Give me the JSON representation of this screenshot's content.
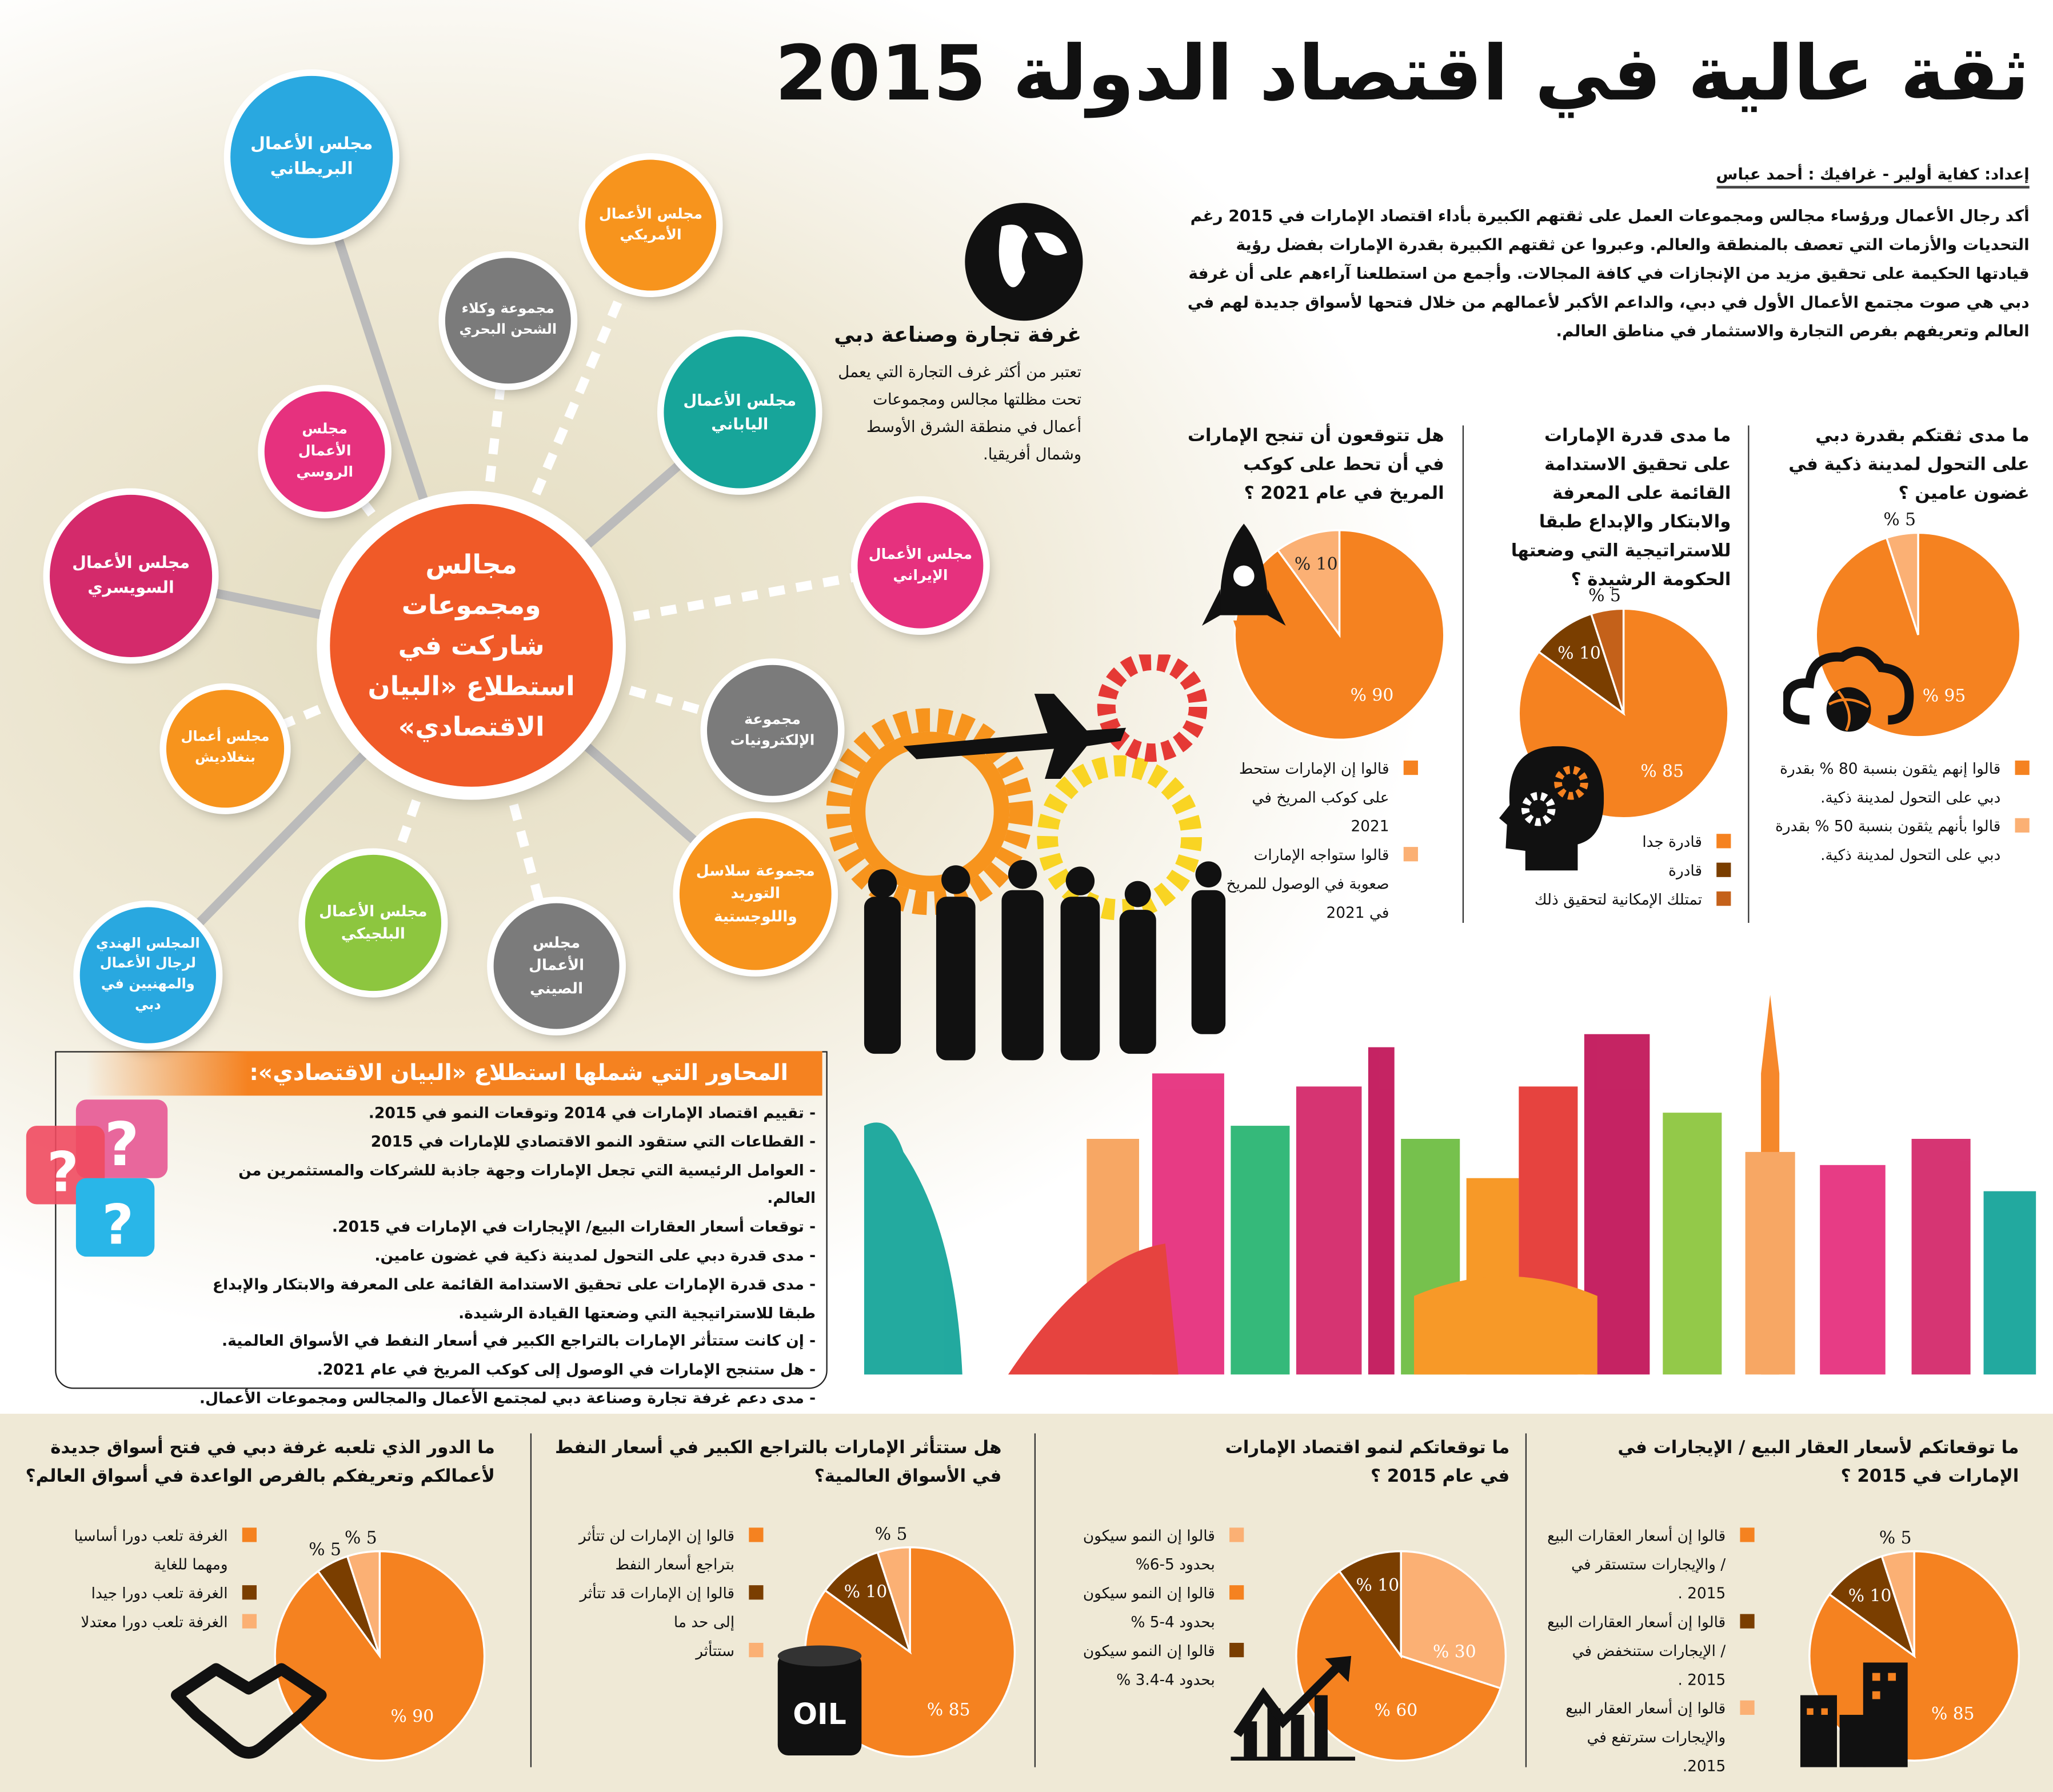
{
  "header": {
    "title": "ثقة عالية في اقتصاد الدولة 2015",
    "credits": "إعداد: كفاية أولير  - غرافيك : أحمد عباس",
    "intro": "أكد رجال الأعمال ورؤساء مجالس ومجموعات العمل على ثقتهم الكبيرة بأداء اقتصاد الإمارات في 2015 رغم التحديات والأزمات التي تعصف بالمنطقة والعالم. وعبروا عن ثقتهم الكبيرة بقدرة الإمارات بفضل رؤية قيادتها الحكيمة على تحقيق مزيد من الإنجازات في كافة المجالات. وأجمع من استطلعنا آراءهم على أن غرفة دبي هي صوت مجتمع الأعمال الأول في دبي، والداعم الأكبر لأعمالهم من خلال فتحها لأسواق جديدة لهم في العالم وتعريفهم بفرص التجارة والاستثمار في مناطق العالم."
  },
  "chamber": {
    "title": "غرفة تجارة وصناعة دبي",
    "text": "تعتبر من أكثر غرف التجارة التي يعمل تحت مظلتها مجالس ومجموعات أعمال في منطقة الشرق الأوسط وشمال أفريقيا."
  },
  "hub": {
    "center": "مجالس ومجموعات شاركت في استطلاع «البيان الاقتصادي»",
    "center_color": "#F05A28",
    "nodes": [
      {
        "label": "مجلس الأعمال البريطاني",
        "color": "#29A8E0"
      },
      {
        "label": "مجلس الأعمال الأمريكي",
        "color": "#F7941D"
      },
      {
        "label": "مجموعة وكلاء الشحن البحري",
        "color": "#7B7B7B"
      },
      {
        "label": "مجلس الأعمال الياباني",
        "color": "#17A59A"
      },
      {
        "label": "مجلس الأعمال الروسي",
        "color": "#E6317E"
      },
      {
        "label": "مجلس الأعمال الإيراني",
        "color": "#E6317E"
      },
      {
        "label": "مجلس الأعمال السويسري",
        "color": "#D42A6B"
      },
      {
        "label": "مجموعة الإلكترونيات",
        "color": "#7B7B7B"
      },
      {
        "label": "مجلس أعمال بنغلاديش",
        "color": "#F7941D"
      },
      {
        "label": "مجموعة سلاسل التوريد واللوجستية",
        "color": "#F7941D"
      },
      {
        "label": "مجلس الأعمال البلجيكي",
        "color": "#8DC63F"
      },
      {
        "label": "مجلس الأعمال الصيني",
        "color": "#7B7B7B"
      },
      {
        "label": "المجلس الهندي لرجال الأعمال والمهنيين في دبي",
        "color": "#29A8E0"
      }
    ]
  },
  "topics": {
    "heading": "المحاور التي شملها استطلاع «البيان الاقتصادي»:",
    "items": [
      "- تقييم اقتصاد الإمارات في 2014 وتوقعات النمو في 2015.",
      "- القطاعات التي ستقود النمو الاقتصادي للإمارات في 2015",
      "- العوامل الرئيسية التي تجعل الإمارات وجهة جاذبة للشركات والمستثمرين من العالم.",
      "- توقعات أسعار العقارات البيع/ الإيجارات في الإمارات في 2015.",
      "- مدى قدرة دبي على التحول لمدينة ذكية في غضون عامين.",
      "- مدى قدرة الإمارات على تحقيق الاستدامة القائمة على المعرفة والابتكار والإبداع طبقا للاستراتيجية التي وضعتها القيادة الرشيدة.",
      "- إن كانت ستتأثر الإمارات بالتراجع الكبير في أسعار النفط في الأسواق العالمية.",
      "- هل ستنجح الإمارات في الوصول إلى كوكب المريخ في عام 2021.",
      "- مدى دعم غرفة تجارة وصناعة دبي لمجتمع الأعمال والمجالس ومجموعات الأعمال."
    ]
  },
  "colors": {
    "orange": "#F58220",
    "light": "#FBB074",
    "dark": "#7A3E00",
    "medium": "#C4611A"
  },
  "chart_data": [
    {
      "type": "pie",
      "id": "smart",
      "title": "ما مدى ثقتكم بقدرة دبي على التحول لمدينة ذكية في غضون عامين ؟",
      "values": [
        95,
        5
      ],
      "labels": [
        "% 95",
        "% 5"
      ],
      "colors": [
        "#F58220",
        "#FBB074"
      ],
      "legend": [
        "قالوا إنهم يثقون بنسبة 80 % بقدرة دبي على التحول لمدينة ذكية.",
        "قالوا بأنهم يثقون بنسبة 50 % بقدرة دبي على التحول لمدينة ذكية."
      ]
    },
    {
      "type": "pie",
      "id": "sustain",
      "title": "ما مدى قدرة الإمارات على تحقيق الاستدامة القائمة على المعرفة والابتكار والإبداع طبقا للاستراتيجية التي وضعتها الحكومة الرشيدة ؟",
      "values": [
        85,
        10,
        5
      ],
      "labels": [
        "% 85",
        "% 10",
        "% 5"
      ],
      "colors": [
        "#F58220",
        "#7A3E00",
        "#C4611A"
      ],
      "legend": [
        "قادرة جدا",
        "قادرة",
        "تمتلك الإمكانية لتحقيق ذلك"
      ]
    },
    {
      "type": "pie",
      "id": "mars",
      "title": "هل تتوقعون أن تنجح الإمارات في أن تحط على كوكب المريخ في عام 2021 ؟",
      "values": [
        90,
        10
      ],
      "labels": [
        "% 90",
        "% 10"
      ],
      "colors": [
        "#F58220",
        "#FBB074"
      ],
      "legend": [
        "قالوا إن الإمارات ستحط على كوكب المريخ في 2021",
        "قالوا ستواجه الإمارات صعوبة في الوصول للمريخ في 2021"
      ]
    },
    {
      "type": "pie",
      "id": "realestate",
      "title": "ما توقعاتكم لأسعار العقار البيع / الإيجارات في الإمارات في 2015 ؟",
      "values": [
        85,
        10,
        5
      ],
      "labels": [
        "% 85",
        "% 10",
        "% 5"
      ],
      "colors": [
        "#F58220",
        "#7A3E00",
        "#FBB074"
      ],
      "legend": [
        "قالوا إن أسعار العقارات البيع / والإيجارات ستستقر في 2015 .",
        "قالوا إن أسعار العقارات البيع / الإيجارات ستنخفض في 2015 .",
        "قالوا إن أسعار العقار البيع والإيجارات سترتفع في 2015."
      ]
    },
    {
      "type": "pie",
      "id": "growth",
      "title": "ما توقعاتكم لنمو اقتصاد الإمارات في عام 2015 ؟",
      "values": [
        30,
        60,
        10
      ],
      "labels": [
        "% 30",
        "% 60",
        "% 10"
      ],
      "colors": [
        "#FBB074",
        "#F58220",
        "#7A3E00"
      ],
      "legend": [
        "قالوا إن النمو سيكون بحدود 5-6%",
        "قالوا إن النمو سيكون بحدود 4-5 %",
        "قالوا إن النمو سيكون بحدود 4-3.4 %"
      ]
    },
    {
      "type": "pie",
      "id": "oil",
      "title": "هل ستتأثر الإمارات بالتراجع الكبير في أسعار النفط في الأسواق العالمية؟",
      "values": [
        85,
        10,
        5
      ],
      "labels": [
        "% 85",
        "% 10",
        "% 5"
      ],
      "colors": [
        "#F58220",
        "#7A3E00",
        "#FBB074"
      ],
      "legend": [
        "قالوا إن الإمارات لن تتأثر بتراجع أسعار النفط",
        "قالوا إن الإمارات قد تتأثر إلى حد ما",
        "ستتأثر"
      ],
      "icon_text": "OIL"
    },
    {
      "type": "pie",
      "id": "chamber",
      "title": "ما الدور الذي تلعبه غرفة دبي في فتح أسواق جديدة لأعمالكم وتعريفكم بالفرص الواعدة في أسواق العالم؟",
      "values": [
        90,
        5,
        5
      ],
      "labels": [
        "% 90",
        "% 5",
        "% 5"
      ],
      "colors": [
        "#F58220",
        "#7A3E00",
        "#FBB074"
      ],
      "legend": [
        "الغرفة تلعب دورا أساسيا ومهما للغاية",
        "الغرفة تلعب دورا جيدا",
        "الغرفة تلعب دورا معتدلا"
      ]
    }
  ]
}
